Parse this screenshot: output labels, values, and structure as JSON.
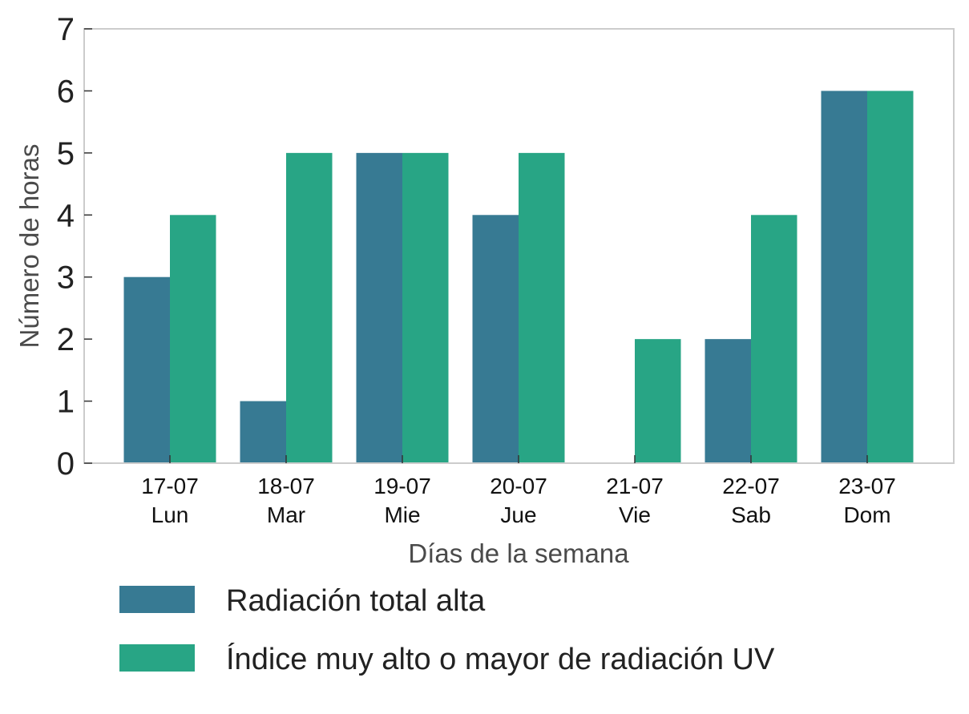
{
  "chart_data": {
    "type": "bar",
    "categories": [
      [
        "17-07",
        "Lun"
      ],
      [
        "18-07",
        "Mar"
      ],
      [
        "19-07",
        "Mie"
      ],
      [
        "20-07",
        "Jue"
      ],
      [
        "21-07",
        "Vie"
      ],
      [
        "22-07",
        "Sab"
      ],
      [
        "23-07",
        "Dom"
      ]
    ],
    "series": [
      {
        "name": "Radiación total alta",
        "color": "#377a93",
        "values": [
          3,
          1,
          5,
          4,
          0,
          2,
          6
        ]
      },
      {
        "name": "Índice muy alto o mayor de radiación UV",
        "color": "#28a585",
        "values": [
          4,
          5,
          5,
          5,
          2,
          4,
          6
        ]
      }
    ],
    "xlabel": "Días de la semana",
    "ylabel": "Número de horas",
    "ylim": [
      0,
      7
    ],
    "yticks": [
      0,
      1,
      2,
      3,
      4,
      5,
      6,
      7
    ],
    "grid": false,
    "legend_position": "bottom-left"
  }
}
